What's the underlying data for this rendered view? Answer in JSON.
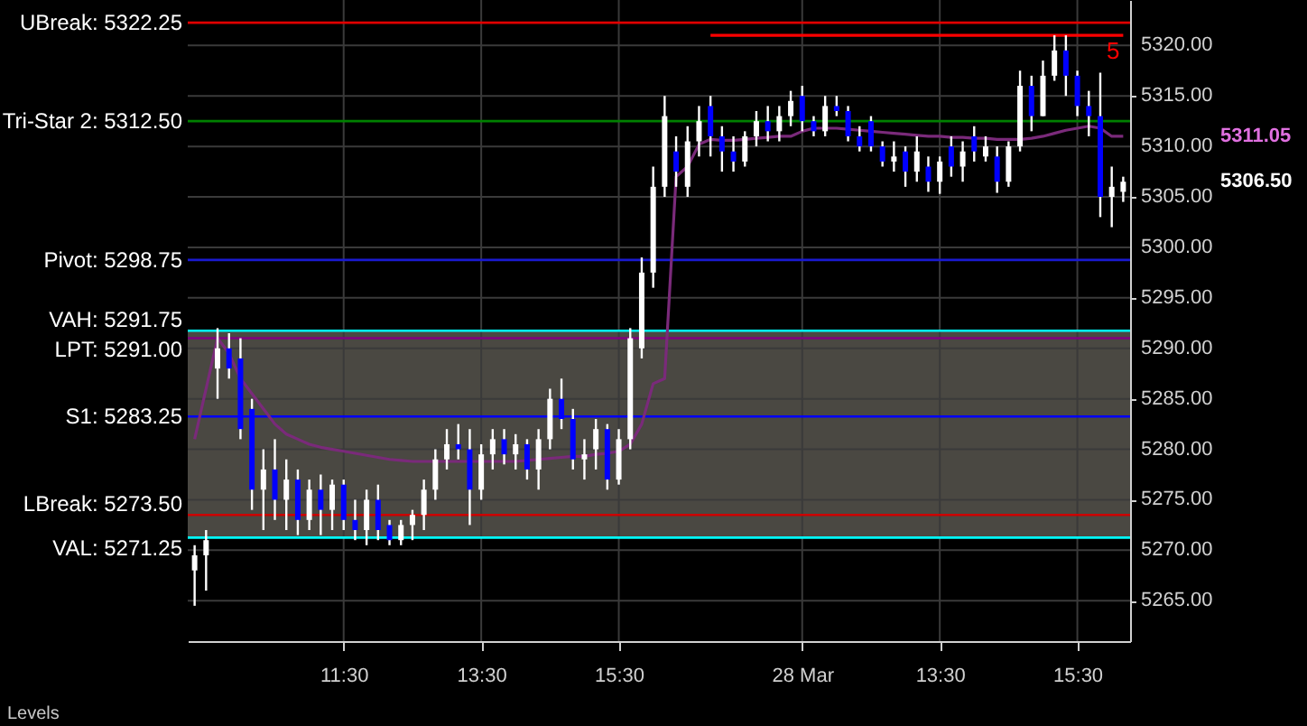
{
  "chart_data": {
    "type": "candlestick",
    "categories": [
      null,
      null,
      null,
      null,
      null,
      null,
      null,
      null,
      null,
      null,
      null,
      null,
      null,
      "11:30",
      null,
      null,
      null,
      null,
      null,
      null,
      null,
      null,
      null,
      null,
      null,
      "13:30",
      null,
      null,
      null,
      null,
      null,
      null,
      null,
      null,
      null,
      null,
      null,
      "15:30",
      null,
      null,
      null,
      null,
      null,
      null,
      null,
      null,
      null,
      null,
      null,
      null,
      null,
      null,
      null,
      "28 Mar",
      null,
      null,
      null,
      null,
      null,
      null,
      null,
      null,
      null,
      null,
      null,
      "13:30",
      null,
      null,
      null,
      null,
      null,
      null,
      null,
      null,
      null,
      null,
      null,
      "15:30",
      null,
      null,
      null,
      null
    ],
    "ohlc": [
      [
        5268,
        5270.5,
        5264.5,
        5269.5
      ],
      [
        5269.5,
        5272,
        5266,
        5271
      ],
      [
        5288,
        5292,
        5285,
        5290
      ],
      [
        5290,
        5291.5,
        5287,
        5288
      ],
      [
        5289,
        5291,
        5281,
        5282
      ],
      [
        5284,
        5285,
        5274,
        5276
      ],
      [
        5276,
        5280,
        5272,
        5278
      ],
      [
        5278,
        5281,
        5273,
        5275
      ],
      [
        5275,
        5279,
        5272,
        5277
      ],
      [
        5277,
        5278,
        5271.5,
        5273
      ],
      [
        5273,
        5277,
        5272,
        5276
      ],
      [
        5276,
        5277.5,
        5271.5,
        5274
      ],
      [
        5274,
        5277,
        5272,
        5276.5
      ],
      [
        5276.5,
        5277,
        5272,
        5273
      ],
      [
        5273,
        5275,
        5271,
        5272
      ],
      [
        5272,
        5276,
        5270.5,
        5275
      ],
      [
        5275,
        5276.5,
        5271,
        5272
      ],
      [
        5272.5,
        5273,
        5270.5,
        5271
      ],
      [
        5271,
        5273,
        5270.5,
        5272.5
      ],
      [
        5272.5,
        5274,
        5271,
        5273.5
      ],
      [
        5273.5,
        5277,
        5272,
        5276
      ],
      [
        5276,
        5280,
        5275,
        5279
      ],
      [
        5279,
        5282,
        5278,
        5280.5
      ],
      [
        5280.5,
        5282.5,
        5279,
        5280
      ],
      [
        5280,
        5282,
        5272.5,
        5276
      ],
      [
        5276,
        5280.5,
        5275,
        5279.5
      ],
      [
        5279.5,
        5282,
        5278,
        5281
      ],
      [
        5281,
        5282,
        5278.5,
        5279.5
      ],
      [
        5279.5,
        5281.5,
        5278,
        5280.5
      ],
      [
        5280.5,
        5281,
        5277,
        5278
      ],
      [
        5278,
        5282,
        5276,
        5281
      ],
      [
        5281,
        5286,
        5280,
        5285
      ],
      [
        5285,
        5287,
        5282,
        5283
      ],
      [
        5283,
        5284,
        5278,
        5279
      ],
      [
        5279,
        5281,
        5277,
        5279.5
      ],
      [
        5280,
        5283,
        5278,
        5282
      ],
      [
        5282,
        5282.5,
        5276,
        5277
      ],
      [
        5277,
        5282,
        5276.5,
        5281
      ],
      [
        5281,
        5292,
        5280,
        5291
      ],
      [
        5290,
        5299,
        5289,
        5297.5
      ],
      [
        5297.5,
        5308,
        5296,
        5306
      ],
      [
        5306,
        5315,
        5305,
        5313
      ],
      [
        5309.5,
        5311,
        5306,
        5307.5
      ],
      [
        5306,
        5312,
        5305,
        5310.5
      ],
      [
        5310.5,
        5314,
        5309,
        5312.5
      ],
      [
        5314,
        5315,
        5309,
        5311
      ],
      [
        5311,
        5312,
        5307.5,
        5309.5
      ],
      [
        5309.5,
        5311,
        5307.5,
        5308.5
      ],
      [
        5308.5,
        5311.5,
        5308,
        5311
      ],
      [
        5311,
        5313.5,
        5310,
        5312.5
      ],
      [
        5312.5,
        5314,
        5310.5,
        5311.5
      ],
      [
        5311.5,
        5314,
        5310.5,
        5313
      ],
      [
        5313,
        5315.5,
        5312,
        5314.5
      ],
      [
        5315,
        5316,
        5311.5,
        5312.5
      ],
      [
        5312.5,
        5313,
        5311,
        5311.5
      ],
      [
        5311.5,
        5315,
        5311,
        5314
      ],
      [
        5314,
        5315,
        5313,
        5313.5
      ],
      [
        5313.5,
        5314,
        5310.5,
        5311
      ],
      [
        5311,
        5312,
        5309.5,
        5310
      ],
      [
        5312.5,
        5313,
        5309.5,
        5310
      ],
      [
        5310,
        5310.5,
        5308,
        5308.5
      ],
      [
        5308.5,
        5310.5,
        5307.5,
        5309
      ],
      [
        5309.5,
        5310,
        5306,
        5307.5
      ],
      [
        5307.5,
        5311,
        5306.5,
        5309.5
      ],
      [
        5308,
        5309,
        5305.5,
        5306.5
      ],
      [
        5306.5,
        5309,
        5305.3,
        5308.5
      ],
      [
        5310,
        5311,
        5307,
        5308
      ],
      [
        5308,
        5310.5,
        5306.5,
        5309.5
      ],
      [
        5311,
        5312,
        5308.5,
        5309.5
      ],
      [
        5309,
        5311,
        5308.5,
        5310
      ],
      [
        5309,
        5310,
        5305.4,
        5306.5
      ],
      [
        5306.5,
        5310.5,
        5306,
        5310
      ],
      [
        5310,
        5317.5,
        5309.5,
        5316
      ],
      [
        5316,
        5317,
        5311.5,
        5313
      ],
      [
        5313,
        5318.5,
        5313,
        5317
      ],
      [
        5317,
        5321,
        5316.5,
        5319.5
      ],
      [
        5319.5,
        5321,
        5315,
        5317
      ],
      [
        5317,
        5317.5,
        5313,
        5314
      ],
      [
        5314,
        5315.5,
        5311,
        5313
      ],
      [
        5313,
        5317.3,
        5303,
        5305
      ],
      [
        5305,
        5308,
        5302,
        5306
      ],
      [
        5305.5,
        5307,
        5304.5,
        5306.5
      ]
    ],
    "series": [
      {
        "type": "line",
        "color": "#7a2a7a",
        "values": [
          5281,
          5286,
          5291,
          5289.5,
          5287,
          5285.5,
          5284,
          5282.5,
          5281.5,
          5281,
          5280.5,
          5280.2,
          5280,
          5279.8,
          5279.6,
          5279.4,
          5279.2,
          5279,
          5278.9,
          5278.8,
          5278.8,
          5278.8,
          5278.8,
          5278.8,
          5278.8,
          5278.8,
          5278.8,
          5278.8,
          5278.8,
          5278.9,
          5279,
          5279.1,
          5279.2,
          5279.3,
          5279.3,
          5279.5,
          5279.6,
          5279.8,
          5280.5,
          5282.5,
          5286.5,
          5287,
          5307,
          5308,
          5310.2,
          5310.7,
          5310.6,
          5310.6,
          5310.7,
          5310.8,
          5310.9,
          5311,
          5311,
          5311.5,
          5311.8,
          5311.8,
          5311.8,
          5311.7,
          5311.6,
          5311.5,
          5311.4,
          5311.3,
          5311.2,
          5311.1,
          5311,
          5311,
          5310.9,
          5310.9,
          5310.8,
          5310.8,
          5310.7,
          5310.7,
          5310.7,
          5310.8,
          5311,
          5311.3,
          5311.6,
          5311.8,
          5312,
          5311.8,
          5311,
          5311
        ]
      },
      {
        "type": "line",
        "name": "5",
        "color": "#ff0000",
        "values": [
          null,
          null,
          null,
          null,
          null,
          null,
          null,
          null,
          null,
          null,
          null,
          null,
          null,
          null,
          null,
          null,
          null,
          null,
          null,
          null,
          null,
          null,
          null,
          null,
          null,
          null,
          null,
          null,
          null,
          null,
          null,
          null,
          null,
          null,
          null,
          null,
          null,
          null,
          null,
          null,
          null,
          null,
          null,
          null,
          null,
          5321,
          5321,
          5321,
          5321,
          5321,
          5321,
          5321,
          5321,
          5321,
          5321,
          5321,
          5321,
          5321,
          5321,
          5321,
          5321,
          5321,
          5321,
          5321,
          5321,
          5321,
          5321,
          5321,
          5321,
          5321,
          5321,
          5321,
          5321,
          5321,
          5321,
          5321,
          5321,
          5321,
          5321,
          5321,
          5321,
          5321
        ]
      }
    ],
    "ylim": [
      5261,
      5324.5
    ],
    "yticks": [
      {
        "value": 5265,
        "label": "5265.00"
      },
      {
        "value": 5270,
        "label": "5270.00"
      },
      {
        "value": 5275,
        "label": "5275.00"
      },
      {
        "value": 5280,
        "label": "5280.00"
      },
      {
        "value": 5285,
        "label": "5285.00"
      },
      {
        "value": 5290,
        "label": "5290.00"
      },
      {
        "value": 5295,
        "label": "5295.00"
      },
      {
        "value": 5300,
        "label": "5300.00"
      },
      {
        "value": 5305,
        "label": "5305.00"
      },
      {
        "value": 5310,
        "label": "5310.00"
      },
      {
        "value": 5315,
        "label": "5315.00"
      },
      {
        "value": 5320,
        "label": "5320.00"
      }
    ],
    "grid": true,
    "bands": [
      {
        "axis": "y",
        "from": 5271.25,
        "to": 5291.75,
        "color": "#4a4842"
      }
    ],
    "ref_lines": [
      {
        "axis": "y",
        "value": 5322.25,
        "label": "UBreak: 5322.25",
        "color": "#e00000"
      },
      {
        "axis": "y",
        "value": 5312.5,
        "label": "Tri-Star 2: 5312.50",
        "color": "#008000"
      },
      {
        "axis": "y",
        "value": 5298.75,
        "label": "Pivot: 5298.75",
        "color": "#1a1ad0"
      },
      {
        "axis": "y",
        "value": 5291.75,
        "label": "VAH: 5291.75",
        "color": "#00ffff"
      },
      {
        "axis": "y",
        "value": 5291,
        "label": "LPT: 5291.00",
        "color": "#800080"
      },
      {
        "axis": "y",
        "value": 5283.25,
        "label": "S1: 5283.25",
        "color": "#0000ff"
      },
      {
        "axis": "y",
        "value": 5273.5,
        "label": "LBreak: 5273.50",
        "color": "#cc0000"
      },
      {
        "axis": "y",
        "value": 5271.25,
        "label": "VAL: 5271.25",
        "color": "#00ffff"
      }
    ],
    "annotations": [
      "5311.05",
      "5306.50",
      "Levels"
    ]
  }
}
